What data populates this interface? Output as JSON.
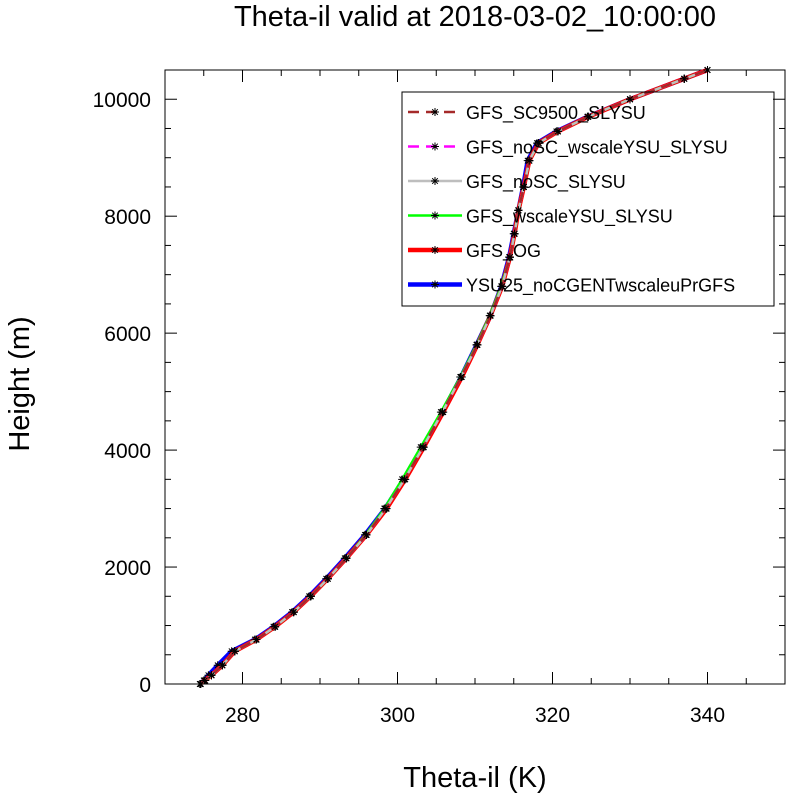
{
  "chart_data": {
    "type": "line",
    "title": "Theta-il valid at 2018-03-02_10:00:00",
    "xlabel": "Theta-il (K)",
    "ylabel": "Height (m)",
    "xlim": [
      270,
      350
    ],
    "ylim": [
      0,
      10500
    ],
    "xticks": [
      280,
      300,
      320,
      340
    ],
    "yticks": [
      0,
      2000,
      4000,
      6000,
      8000,
      10000
    ],
    "grid": false,
    "legend_position": "top-right",
    "series": [
      {
        "name": "YSU25_noCGENTwscaleuPrGFS",
        "color": "#0000ff",
        "style": "solid",
        "width": 4.5,
        "x": [
          274.5,
          275.0,
          275.6,
          276.8,
          278.6,
          281.6,
          284.0,
          286.4,
          288.6,
          290.8,
          293.2,
          295.8,
          298.4,
          300.8,
          303.2,
          305.8,
          308.2,
          310.2,
          312.0,
          313.4,
          314.4,
          315.0,
          315.6,
          316.2,
          316.8,
          318.0,
          320.5,
          324.5,
          330.0,
          337.0,
          340.0
        ],
        "y": [
          0,
          60,
          150,
          320,
          560,
          760,
          980,
          1230,
          1500,
          1800,
          2150,
          2550,
          3000,
          3500,
          4050,
          4650,
          5250,
          5800,
          6300,
          6800,
          7300,
          7700,
          8100,
          8500,
          8950,
          9250,
          9450,
          9700,
          10000,
          10350,
          10500
        ]
      },
      {
        "name": "GFS_OG",
        "color": "#ff0000",
        "style": "solid",
        "width": 4.5,
        "x": [
          274.5,
          275.1,
          276.0,
          277.4,
          279.0,
          281.8,
          284.2,
          286.6,
          288.8,
          291.0,
          293.4,
          296.0,
          298.6,
          301.0,
          303.4,
          305.9,
          308.3,
          310.3,
          312.0,
          313.5,
          314.5,
          315.1,
          315.6,
          316.3,
          317.0,
          318.2,
          320.7,
          324.6,
          330.0,
          337.0,
          340.0
        ],
        "y": [
          0,
          60,
          150,
          320,
          560,
          760,
          980,
          1230,
          1500,
          1800,
          2150,
          2550,
          3000,
          3500,
          4050,
          4650,
          5250,
          5800,
          6300,
          6800,
          7300,
          7700,
          8100,
          8500,
          8950,
          9250,
          9450,
          9700,
          10000,
          10350,
          10500
        ]
      },
      {
        "name": "GFS_wscaleYSU_SLYSU",
        "color": "#00ff00",
        "style": "solid",
        "width": 2.5,
        "x": [
          274.6,
          275.2,
          276.0,
          277.4,
          279.0,
          281.8,
          284.2,
          286.6,
          288.8,
          291.0,
          293.4,
          295.9,
          298.3,
          300.6,
          303.0,
          305.6,
          308.1,
          310.2,
          311.9,
          313.4,
          314.5,
          315.1,
          315.6,
          316.3,
          317.0,
          318.2,
          320.7,
          324.6,
          330.0,
          337.0,
          340.0
        ],
        "y": [
          0,
          60,
          150,
          320,
          560,
          760,
          980,
          1230,
          1500,
          1800,
          2150,
          2550,
          3000,
          3500,
          4050,
          4650,
          5250,
          5800,
          6300,
          6800,
          7300,
          7700,
          8100,
          8500,
          8950,
          9250,
          9450,
          9700,
          10000,
          10350,
          10500
        ]
      },
      {
        "name": "GFS_noSC_SLYSU",
        "color": "#bebebe",
        "style": "solid",
        "width": 2.5,
        "x": [
          274.6,
          275.1,
          276.0,
          277.4,
          279.0,
          281.8,
          284.2,
          286.6,
          288.8,
          291.0,
          293.4,
          296.0,
          298.5,
          300.9,
          303.3,
          305.8,
          308.2,
          310.3,
          312.0,
          313.5,
          314.5,
          315.1,
          315.6,
          316.3,
          317.0,
          318.2,
          320.7,
          324.6,
          330.0,
          337.0,
          340.0
        ],
        "y": [
          0,
          60,
          150,
          320,
          560,
          760,
          980,
          1230,
          1500,
          1800,
          2150,
          2550,
          3000,
          3500,
          4050,
          4650,
          5250,
          5800,
          6300,
          6800,
          7300,
          7700,
          8100,
          8500,
          8950,
          9250,
          9450,
          9700,
          10000,
          10350,
          10500
        ]
      },
      {
        "name": "GFS_noSC_wscaleYSU_SLYSU",
        "color": "#ff00ff",
        "style": "dashed",
        "width": 2.5,
        "x": [
          274.6,
          275.1,
          276.0,
          277.4,
          279.0,
          281.8,
          284.2,
          286.6,
          288.8,
          291.0,
          293.4,
          296.0,
          298.5,
          300.9,
          303.3,
          305.8,
          308.2,
          310.3,
          312.0,
          313.5,
          314.5,
          315.1,
          315.6,
          316.3,
          317.0,
          318.2,
          320.7,
          324.6,
          330.0,
          337.0,
          340.0
        ],
        "y": [
          0,
          60,
          150,
          320,
          560,
          760,
          980,
          1230,
          1500,
          1800,
          2150,
          2550,
          3000,
          3500,
          4050,
          4650,
          5250,
          5800,
          6300,
          6800,
          7300,
          7700,
          8100,
          8500,
          8950,
          9250,
          9450,
          9700,
          10000,
          10350,
          10500
        ]
      },
      {
        "name": "GFS_SC9500_SLYSU",
        "color": "#a52a2a",
        "style": "dashed",
        "width": 2.5,
        "x": [
          274.6,
          275.1,
          276.0,
          277.4,
          279.0,
          281.8,
          284.2,
          286.6,
          288.8,
          291.0,
          293.4,
          296.0,
          298.5,
          300.9,
          303.3,
          305.8,
          308.2,
          310.3,
          312.0,
          313.5,
          314.5,
          315.1,
          315.6,
          316.3,
          317.0,
          318.2,
          320.7,
          324.6,
          330.0,
          337.0,
          340.0
        ],
        "y": [
          0,
          60,
          150,
          320,
          560,
          760,
          980,
          1230,
          1500,
          1800,
          2150,
          2550,
          3000,
          3500,
          4050,
          4650,
          5250,
          5800,
          6300,
          6800,
          7300,
          7700,
          8100,
          8500,
          8950,
          9250,
          9450,
          9700,
          10000,
          10350,
          10500
        ]
      }
    ],
    "legend_order": [
      "GFS_SC9500_SLYSU",
      "GFS_noSC_wscaleYSU_SLYSU",
      "GFS_noSC_SLYSU",
      "GFS_wscaleYSU_SLYSU",
      "GFS_OG",
      "YSU25_noCGENTwscaleuPrGFS"
    ],
    "marker": "asterisk",
    "marker_color": "#000000"
  }
}
